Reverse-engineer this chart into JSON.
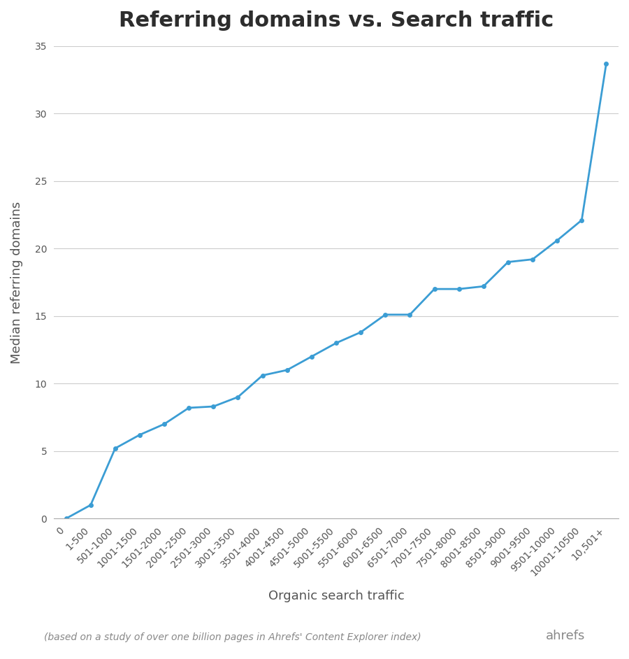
{
  "title": "Referring domains vs. Search traffic",
  "xlabel": "Organic search traffic",
  "ylabel": "Median referring domains",
  "footnote": "(based on a study of over one billion pages in Ahrefs' Content Explorer index)",
  "brand": "ahrefs",
  "categories": [
    "0",
    "1-500",
    "501-1000",
    "1001-1500",
    "1501-2000",
    "2001-2500",
    "2501-3000",
    "3001-3500",
    "3501-4000",
    "4001-4500",
    "4501-5000",
    "5001-5500",
    "5501-6000",
    "6001-6500",
    "6501-7000",
    "7001-7500",
    "7501-8000",
    "8001-8500",
    "8501-9000",
    "9001-9500",
    "9501-10000",
    "10001-10500",
    "10,501+"
  ],
  "values": [
    0.0,
    1.0,
    5.2,
    6.2,
    7.0,
    8.2,
    8.3,
    9.0,
    10.6,
    11.0,
    12.0,
    13.0,
    13.8,
    15.1,
    15.1,
    17.0,
    17.0,
    17.2,
    19.0,
    19.2,
    20.6,
    22.1,
    33.7
  ],
  "line_color": "#3b9dd4",
  "marker_color": "#3b9dd4",
  "background_color": "#ffffff",
  "grid_color": "#cccccc",
  "title_color": "#2d2d2d",
  "label_color": "#555555",
  "footnote_color": "#888888",
  "brand_color": "#888888",
  "ylim": [
    0,
    35
  ],
  "yticks": [
    0,
    5,
    10,
    15,
    20,
    25,
    30,
    35
  ],
  "title_fontsize": 22,
  "axis_label_fontsize": 13,
  "tick_fontsize": 10,
  "footnote_fontsize": 10,
  "brand_fontsize": 13
}
